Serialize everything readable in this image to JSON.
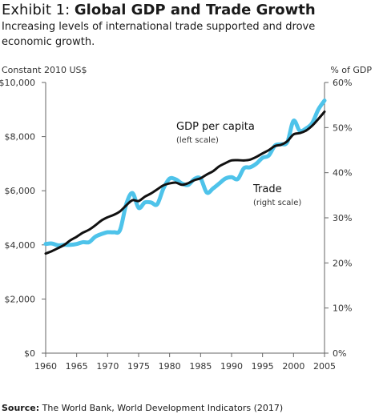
{
  "header": {
    "title_prefix": "Exhibit 1: ",
    "title_main": "Global GDP and Trade Growth",
    "subtitle": "Increasing levels of international trade supported and drove economic growth."
  },
  "footer": {
    "source_label": "Source:",
    "source_text": " The World Bank, World Development Indicators (2017)"
  },
  "chart_data": {
    "type": "line",
    "ylabel": "Constant 2010 US$",
    "y2label": "% of GDP",
    "xlim": [
      1960,
      2005
    ],
    "ylim": [
      0,
      10000
    ],
    "y2lim": [
      0,
      60
    ],
    "x_ticks": [
      "1960",
      "1965",
      "1970",
      "1975",
      "1980",
      "1985",
      "1990",
      "1995",
      "2000",
      "2005"
    ],
    "y_ticks": [
      "$10,000",
      "$8,000",
      "$6,000",
      "$4,000",
      "$2,000",
      "$0"
    ],
    "y2_ticks": [
      "60%",
      "50%",
      "40%",
      "30%",
      "20%",
      "10%",
      "0%"
    ],
    "colors": {
      "gdp": "#111111",
      "trade": "#4ec3ea"
    },
    "series": [
      {
        "name": "GDP per capita",
        "note": "(left scale)",
        "axis": "left",
        "x": [
          1960,
          1961,
          1962,
          1963,
          1964,
          1965,
          1966,
          1967,
          1968,
          1969,
          1970,
          1971,
          1972,
          1973,
          1974,
          1975,
          1976,
          1977,
          1978,
          1979,
          1980,
          1981,
          1982,
          1983,
          1984,
          1985,
          1986,
          1987,
          1988,
          1989,
          1990,
          1991,
          1992,
          1993,
          1994,
          1995,
          1996,
          1997,
          1998,
          1999,
          2000,
          2001,
          2002,
          2003,
          2004,
          2005
        ],
        "values": [
          3680,
          3770,
          3880,
          4000,
          4170,
          4300,
          4450,
          4560,
          4720,
          4900,
          5020,
          5110,
          5240,
          5460,
          5650,
          5620,
          5780,
          5900,
          6050,
          6200,
          6270,
          6300,
          6220,
          6280,
          6390,
          6460,
          6600,
          6720,
          6900,
          7020,
          7120,
          7130,
          7120,
          7150,
          7250,
          7380,
          7500,
          7650,
          7700,
          7830,
          8080,
          8130,
          8220,
          8400,
          8650,
          8920
        ]
      },
      {
        "name": "Trade",
        "note": "(right scale)",
        "axis": "right",
        "x": [
          1960,
          1961,
          1962,
          1963,
          1964,
          1965,
          1966,
          1967,
          1968,
          1969,
          1970,
          1971,
          1972,
          1973,
          1974,
          1975,
          1976,
          1977,
          1978,
          1979,
          1980,
          1981,
          1982,
          1983,
          1984,
          1985,
          1986,
          1987,
          1988,
          1989,
          1990,
          1991,
          1992,
          1993,
          1994,
          1995,
          1996,
          1997,
          1998,
          1999,
          2000,
          2001,
          2002,
          2003,
          2004,
          2005
        ],
        "values": [
          24.2,
          24.3,
          23.9,
          24.0,
          24.0,
          24.2,
          24.6,
          24.6,
          25.8,
          26.4,
          26.8,
          26.8,
          27.3,
          33.0,
          35.5,
          32.2,
          33.4,
          33.4,
          33.0,
          36.5,
          38.7,
          38.5,
          37.6,
          37.3,
          38.6,
          38.7,
          35.6,
          36.5,
          37.6,
          38.7,
          39.0,
          38.6,
          41.0,
          41.2,
          42.0,
          43.3,
          43.8,
          46.0,
          46.3,
          46.8,
          51.5,
          49.3,
          49.8,
          51.0,
          54.0,
          56.0
        ]
      }
    ]
  }
}
